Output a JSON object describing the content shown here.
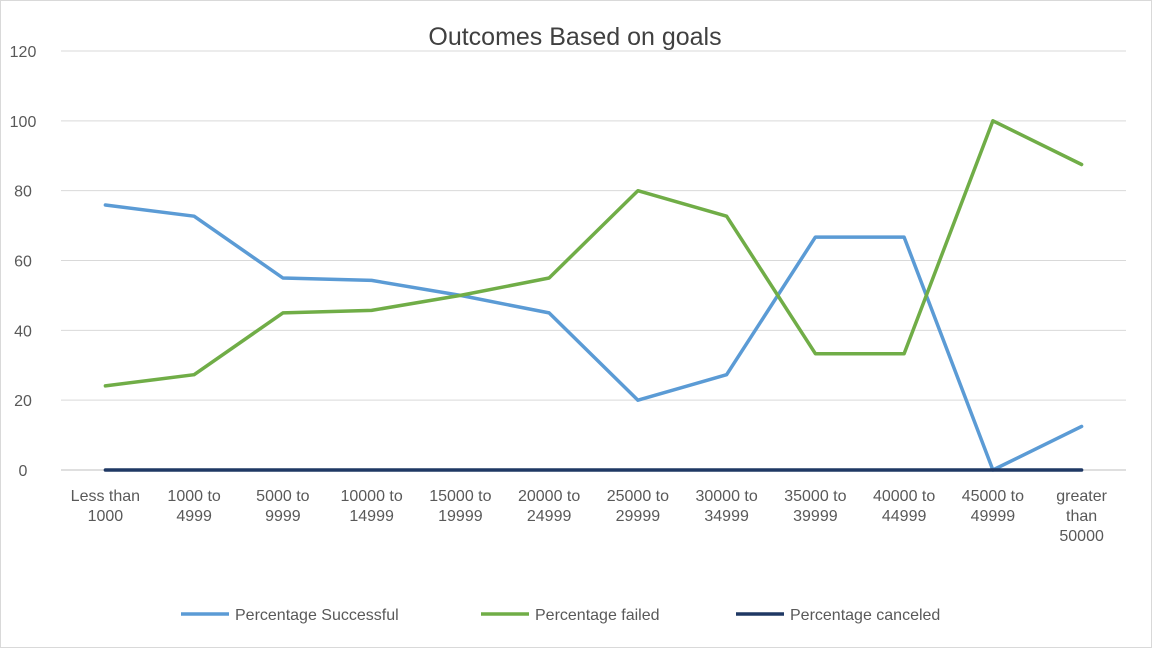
{
  "chart_data": {
    "type": "line",
    "title": "Outcomes Based on goals",
    "xlabel": "",
    "ylabel": "",
    "ylim": [
      0,
      120
    ],
    "yticks": [
      0,
      20,
      40,
      60,
      80,
      100,
      120
    ],
    "grid": true,
    "legend_position": "bottom",
    "categories": [
      [
        "Less than",
        "1000"
      ],
      [
        "1000 to",
        "4999"
      ],
      [
        "5000 to",
        "9999"
      ],
      [
        "10000 to",
        "14999"
      ],
      [
        "15000 to",
        "19999"
      ],
      [
        "20000 to",
        "24999"
      ],
      [
        "25000 to",
        "29999"
      ],
      [
        "30000 to",
        "34999"
      ],
      [
        "35000 to",
        "39999"
      ],
      [
        "40000 to",
        "44999"
      ],
      [
        "45000 to",
        "49999"
      ],
      [
        "greater",
        "than",
        "50000"
      ]
    ],
    "series": [
      {
        "name": "Percentage Successful",
        "color": "#5b9bd5",
        "values": [
          75.9,
          72.7,
          55.0,
          54.3,
          50.0,
          45.0,
          20.0,
          27.3,
          66.7,
          66.7,
          0,
          12.5
        ]
      },
      {
        "name": "Percentage failed",
        "color": "#70ad47",
        "values": [
          24.1,
          27.3,
          45.0,
          45.7,
          50.0,
          55.0,
          80.0,
          72.7,
          33.3,
          33.3,
          100,
          87.5
        ]
      },
      {
        "name": "Percentage canceled",
        "color": "#1f3864",
        "values": [
          0,
          0,
          0,
          0,
          0,
          0,
          0,
          0,
          0,
          0,
          0,
          0
        ]
      }
    ]
  }
}
